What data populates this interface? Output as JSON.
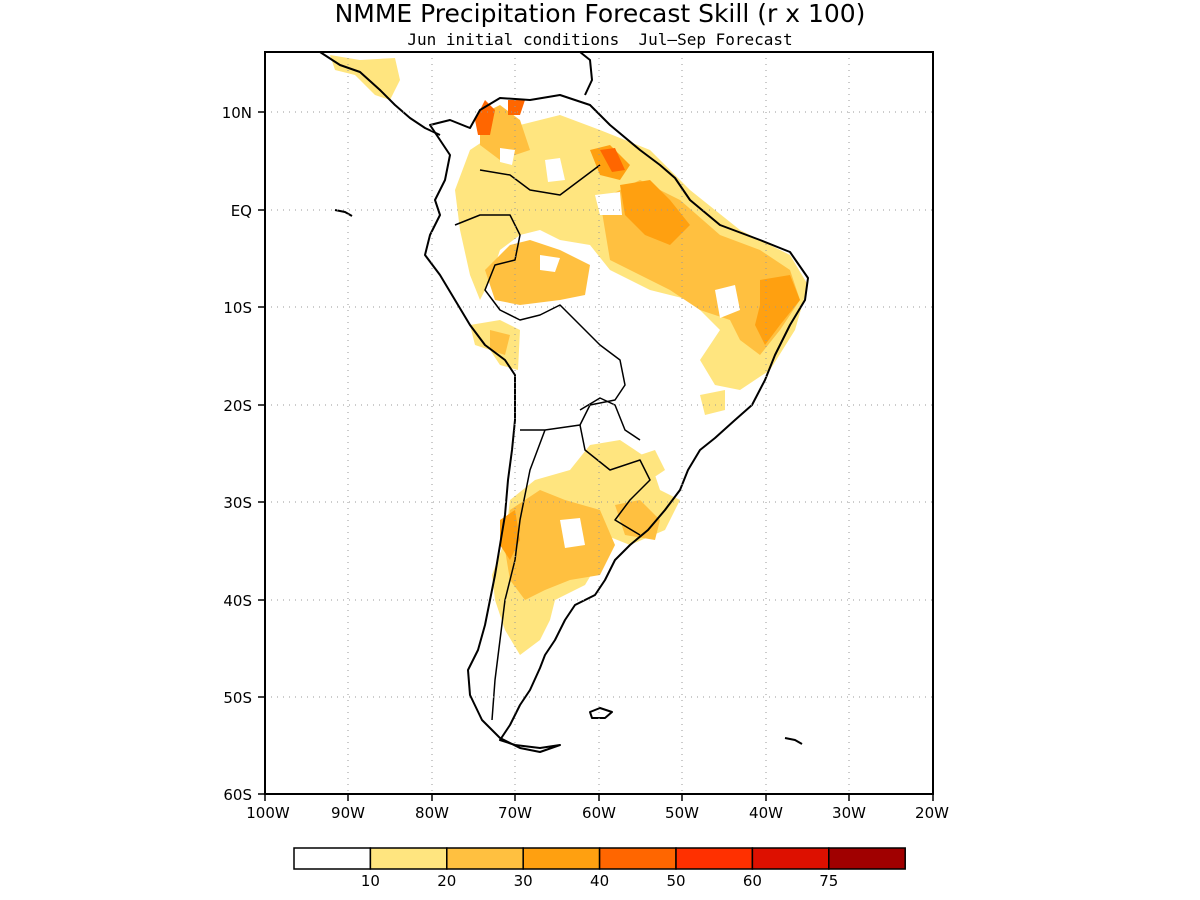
{
  "title": "NMME Precipitation Forecast Skill (r x 100)",
  "subtitle": "Jun initial conditions  Jul–Sep Forecast",
  "lat_labels": [
    "10N",
    "EQ",
    "10S",
    "20S",
    "30S",
    "40S",
    "50S",
    "60S"
  ],
  "lon_labels": [
    "100W",
    "90W",
    "80W",
    "70W",
    "60W",
    "50W",
    "40W",
    "30W",
    "20W"
  ],
  "colorbar": {
    "colors": [
      "#ffffff",
      "#ffe57f",
      "#ffc040",
      "#ffa010",
      "#ff6600",
      "#ff3000",
      "#dd1000",
      "#a00000"
    ],
    "labels": [
      "10",
      "20",
      "30",
      "40",
      "50",
      "60",
      "75"
    ]
  }
}
